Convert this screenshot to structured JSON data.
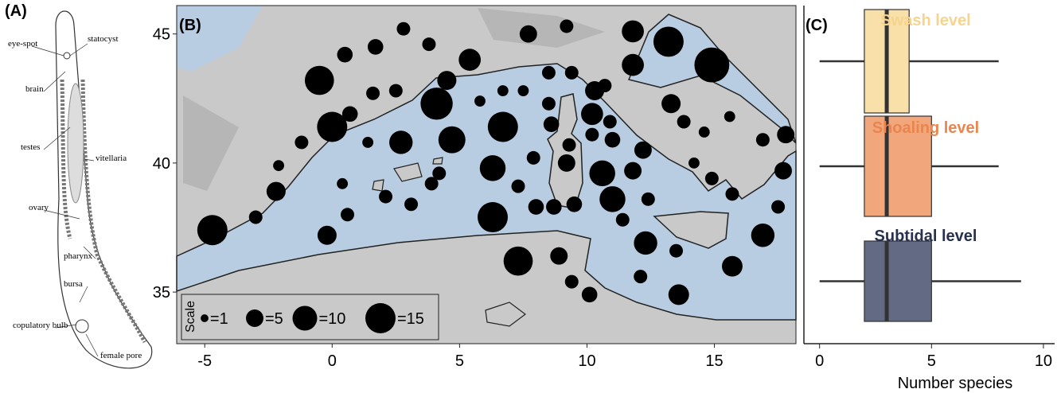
{
  "panel_a": {
    "label": "(A)",
    "parts": [
      "eye-spot",
      "statocyst",
      "brain",
      "testes",
      "vitellaria",
      "ovary",
      "pharynx",
      "bursa",
      "copulatory bulb",
      "female pore"
    ]
  },
  "chart_data": [
    {
      "type": "bubble-map",
      "label": "(B)",
      "xlim": [
        -6.1,
        18.2
      ],
      "ylim": [
        33,
        46.1
      ],
      "xticks": [
        -5,
        0,
        5,
        10,
        15
      ],
      "yticks": [
        35,
        40,
        45
      ],
      "color": "#000000",
      "points": {
        "lon": [
          -4.7,
          -0.5,
          0,
          0.5,
          1.7,
          2.8,
          3.8,
          5.4,
          4.5,
          4.1,
          4.7,
          2.7,
          0.7,
          1.6,
          2.5,
          -1.2,
          -2.1,
          -2.2,
          -3,
          -0.2,
          0.6,
          0.4,
          1.4,
          2.1,
          3.1,
          3.9,
          4.2,
          5.8,
          6.3,
          6.3,
          6.7,
          7.7,
          9.2,
          7.5,
          8.5,
          9.4,
          10.3,
          10.2,
          8.6,
          9.2,
          10.6,
          11.0,
          11.8,
          12.2,
          11.8,
          13.2,
          14.9,
          11.8,
          13.3,
          13.8,
          14.6,
          15.6,
          17.8,
          16.9,
          17.7,
          14.2,
          14.9,
          15.7,
          17.5,
          16.9,
          15.7,
          13.6,
          13.5,
          12.3,
          12.4,
          11.4,
          10.1,
          9.4,
          8.9,
          7.3,
          12.1,
          8.0,
          8.7,
          9.5,
          7.3,
          7.9,
          9.3,
          10.9,
          11.0,
          10.2,
          10.7,
          8.5,
          6.7
        ],
        "lat": [
          37.4,
          43.2,
          41.4,
          44.2,
          44.5,
          45.2,
          44.6,
          44.0,
          43.2,
          42.3,
          40.9,
          40.8,
          41.9,
          42.7,
          42.8,
          40.8,
          39.9,
          38.9,
          37.9,
          37.2,
          38.0,
          39.2,
          40.8,
          38.7,
          38.4,
          39.2,
          39.6,
          42.4,
          39.8,
          37.9,
          41.4,
          45.0,
          45.3,
          42.8,
          43.5,
          43.5,
          42.8,
          41.9,
          41.5,
          40.0,
          39.6,
          38.6,
          39.7,
          40.5,
          45.1,
          44.7,
          43.8,
          43.8,
          42.3,
          41.6,
          41.2,
          41.8,
          41.1,
          40.9,
          39.7,
          40.0,
          39.4,
          38.8,
          38.3,
          37.2,
          36.0,
          34.9,
          36.6,
          36.9,
          38.6,
          37.8,
          34.9,
          35.4,
          36.4,
          36.2,
          35.6,
          38.3,
          38.3,
          38.4,
          39.1,
          40.2,
          40.7,
          41.6,
          40.9,
          41.1,
          43.0,
          42.3,
          42.8
        ],
        "n": [
          15,
          14,
          15,
          4,
          4,
          3,
          3,
          8,
          6,
          17,
          12,
          9,
          4,
          3,
          3,
          3,
          2,
          6,
          3,
          6,
          3,
          2,
          2,
          3,
          3,
          3,
          3,
          2,
          11,
          15,
          15,
          5,
          3,
          2,
          3,
          3,
          6,
          8,
          4,
          5,
          11,
          11,
          5,
          5,
          8,
          15,
          20,
          8,
          6,
          3,
          2,
          2,
          5,
          3,
          5,
          2,
          3,
          3,
          3,
          9,
          7,
          7,
          3,
          9,
          3,
          3,
          4,
          3,
          5,
          14,
          3,
          4,
          4,
          4,
          3,
          3,
          3,
          3,
          4,
          3,
          3,
          3,
          2
        ]
      },
      "scale": {
        "title": "Scale",
        "sizes": [
          {
            "value": 1,
            "label": "=1"
          },
          {
            "value": 5,
            "label": "=5"
          },
          {
            "value": 10,
            "label": "=10"
          },
          {
            "value": 15,
            "label": "=15"
          }
        ]
      }
    },
    {
      "type": "box",
      "label": "(C)",
      "orientation": "horizontal",
      "x_label": "Number species",
      "xlim": [
        -0.7,
        10.5
      ],
      "xticks": [
        0,
        5,
        10
      ],
      "categories": [
        "Swash level",
        "Shoaling level",
        "Subtidal level"
      ],
      "colors": [
        "#f9dfa8",
        "#f1a67c",
        "#636b84"
      ],
      "label_colors": [
        "#f7d48e",
        "#e9854f",
        "#27314f"
      ],
      "min": [
        0,
        0,
        0
      ],
      "q1": [
        2,
        2,
        2
      ],
      "median": [
        3,
        3,
        3
      ],
      "q3": [
        4,
        5,
        5
      ],
      "max": [
        8,
        8,
        9
      ]
    }
  ]
}
